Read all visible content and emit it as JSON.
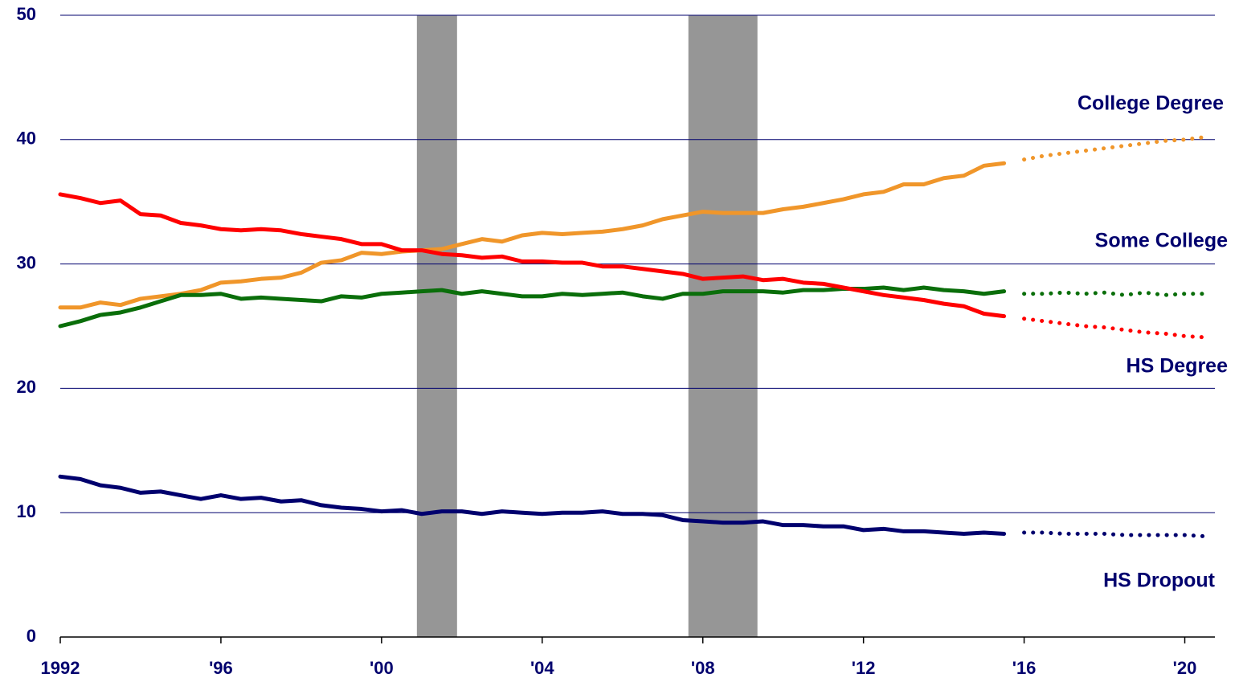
{
  "chart_data": {
    "type": "line",
    "x": [
      1992,
      1992.5,
      1993,
      1993.5,
      1994,
      1994.5,
      1995,
      1995.5,
      1996,
      1996.5,
      1997,
      1997.5,
      1998,
      1998.5,
      1999,
      1999.5,
      2000,
      2000.5,
      2001,
      2001.5,
      2002,
      2002.5,
      2003,
      2003.5,
      2004,
      2004.5,
      2005,
      2005.5,
      2006,
      2006.5,
      2007,
      2007.5,
      2008,
      2008.5,
      2009,
      2009.5,
      2010,
      2010.5,
      2011,
      2011.5,
      2012,
      2012.5,
      2013,
      2013.5,
      2014,
      2014.5,
      2015,
      2015.5,
      2016,
      2016.5,
      2017,
      2017.5,
      2018,
      2018.5,
      2019,
      2019.5,
      2020,
      2020.5
    ],
    "projection_from": 2016,
    "series": [
      {
        "name": "College Degree",
        "color": "#f0962a",
        "values": [
          26.5,
          26.5,
          26.9,
          26.7,
          27.2,
          27.4,
          27.6,
          27.9,
          28.5,
          28.6,
          28.8,
          28.9,
          29.3,
          30.1,
          30.3,
          30.9,
          30.8,
          31.0,
          31.1,
          31.2,
          31.6,
          32.0,
          31.8,
          32.3,
          32.5,
          32.4,
          32.5,
          32.6,
          32.8,
          33.1,
          33.6,
          33.9,
          34.2,
          34.1,
          34.1,
          34.1,
          34.4,
          34.6,
          34.9,
          35.2,
          35.6,
          35.8,
          36.4,
          36.4,
          36.9,
          37.1,
          37.9,
          38.1,
          38.4,
          38.7,
          38.9,
          39.1,
          39.3,
          39.5,
          39.7,
          39.9,
          40.0,
          40.2
        ]
      },
      {
        "name": "Some College",
        "color": "#0a6e0a",
        "values": [
          25.0,
          25.4,
          25.9,
          26.1,
          26.5,
          27.0,
          27.5,
          27.5,
          27.6,
          27.2,
          27.3,
          27.2,
          27.1,
          27.0,
          27.4,
          27.3,
          27.6,
          27.7,
          27.8,
          27.9,
          27.6,
          27.8,
          27.6,
          27.4,
          27.4,
          27.6,
          27.5,
          27.6,
          27.7,
          27.4,
          27.2,
          27.6,
          27.6,
          27.8,
          27.8,
          27.8,
          27.7,
          27.9,
          27.9,
          28.0,
          28.0,
          28.1,
          27.9,
          28.1,
          27.9,
          27.8,
          27.6,
          27.8,
          27.6,
          27.6,
          27.7,
          27.6,
          27.7,
          27.5,
          27.7,
          27.5,
          27.6,
          27.6
        ]
      },
      {
        "name": "HS Degree",
        "color": "#ff0000",
        "values": [
          35.6,
          35.3,
          34.9,
          35.1,
          34.0,
          33.9,
          33.3,
          33.1,
          32.8,
          32.7,
          32.8,
          32.7,
          32.4,
          32.2,
          32.0,
          31.6,
          31.6,
          31.1,
          31.1,
          30.8,
          30.7,
          30.5,
          30.6,
          30.2,
          30.2,
          30.1,
          30.1,
          29.8,
          29.8,
          29.6,
          29.4,
          29.2,
          28.8,
          28.9,
          29.0,
          28.7,
          28.8,
          28.5,
          28.4,
          28.1,
          27.8,
          27.5,
          27.3,
          27.1,
          26.8,
          26.6,
          26.0,
          25.8,
          25.6,
          25.4,
          25.2,
          25.0,
          24.9,
          24.7,
          24.5,
          24.4,
          24.2,
          24.1
        ]
      },
      {
        "name": "HS Dropout",
        "color": "#00006e",
        "values": [
          12.9,
          12.7,
          12.2,
          12.0,
          11.6,
          11.7,
          11.4,
          11.1,
          11.4,
          11.1,
          11.2,
          10.9,
          11.0,
          10.6,
          10.4,
          10.3,
          10.1,
          10.2,
          9.9,
          10.1,
          10.1,
          9.9,
          10.1,
          10.0,
          9.9,
          10.0,
          10.0,
          10.1,
          9.9,
          9.9,
          9.8,
          9.4,
          9.3,
          9.2,
          9.2,
          9.3,
          9.0,
          9.0,
          8.9,
          8.9,
          8.6,
          8.7,
          8.5,
          8.5,
          8.4,
          8.3,
          8.4,
          8.3,
          8.4,
          8.4,
          8.3,
          8.3,
          8.3,
          8.2,
          8.2,
          8.2,
          8.2,
          8.1
        ]
      }
    ],
    "shaded_periods": [
      [
        2000.88,
        2001.88
      ],
      [
        2007.64,
        2009.36
      ]
    ],
    "shade_color": "#969696",
    "xlim": [
      1992,
      2020.75
    ],
    "xticks": [
      1992,
      {
        "value": 1996,
        "label": "'96"
      },
      {
        "value": 2000,
        "label": "'00"
      },
      {
        "value": 2004,
        "label": "'04"
      },
      {
        "value": 2008,
        "label": "'08"
      },
      {
        "value": 2012,
        "label": "'12"
      },
      {
        "value": 2016,
        "label": "'16"
      },
      {
        "value": 2020,
        "label": "'20"
      }
    ],
    "ylim": [
      0,
      50
    ],
    "yticks": [
      0,
      10,
      20,
      30,
      40,
      50
    ],
    "grid": true
  }
}
